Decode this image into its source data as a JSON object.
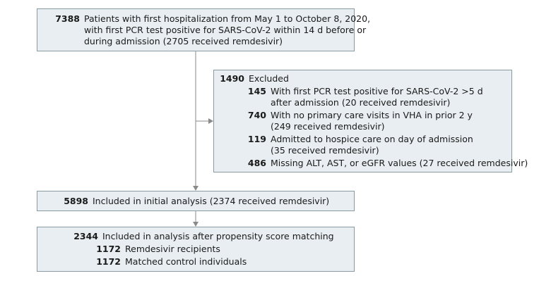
{
  "top_box": {
    "count": "7388",
    "lines": [
      "Patients with first hospitalization from May 1 to October 8, 2020,",
      "with first PCR test positive for SARS-CoV-2 within 14 d before or",
      "during admission (2705 received remdesivir)"
    ]
  },
  "excluded_box": {
    "count": "1490",
    "label": "Excluded",
    "items": [
      {
        "count": "145",
        "lines": [
          "With first PCR test positive for SARS-CoV-2 >5 d",
          "after admission (20 received remdesivir)"
        ]
      },
      {
        "count": "740",
        "lines": [
          "With no primary care visits in VHA in prior 2 y",
          "(249 received remdesivir)"
        ]
      },
      {
        "count": "119",
        "lines": [
          "Admitted to hospice care on day of admission",
          "(35 received remdesivir)"
        ]
      },
      {
        "count": "486",
        "lines": [
          "Missing ALT, AST, or eGFR values (27 received remdesivir)"
        ]
      }
    ]
  },
  "initial_box": {
    "count": "5898",
    "label": "Included in initial analysis (2374 received remdesivir)"
  },
  "matched_box": {
    "count": "2344",
    "label": "Included in analysis after propensity score matching",
    "items": [
      {
        "count": "1172",
        "label": "Remdesivir recipients"
      },
      {
        "count": "1172",
        "label": "Matched control individuals"
      }
    ]
  },
  "colors": {
    "box_fill": "#e8eef1",
    "box_border": "#8a9aa3",
    "line": "#8a8a8a"
  }
}
